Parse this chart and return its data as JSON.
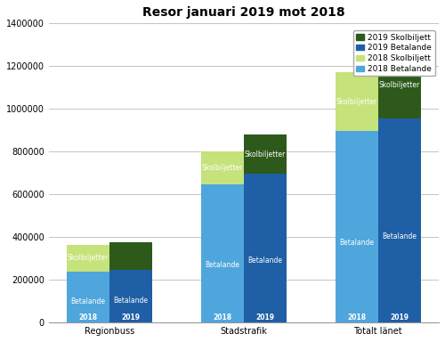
{
  "title": "Resor januari 2019 mot 2018",
  "groups": [
    "Regionbuss",
    "Stadstrafik",
    "Totalt länet"
  ],
  "years": [
    "2018",
    "2019"
  ],
  "betalande_2018": [
    240000,
    645000,
    895000
  ],
  "skolbiljett_2018": [
    125000,
    155000,
    275000
  ],
  "betalande_2019": [
    245000,
    695000,
    955000
  ],
  "skolbiljett_2019": [
    130000,
    185000,
    310000
  ],
  "color_betalande_2018": "#4ea6dc",
  "color_skolbiljett_2018": "#c6e27a",
  "color_betalande_2019": "#1f5fa6",
  "color_skolbiljett_2019": "#2d5a1b",
  "ylim": [
    0,
    1400000
  ],
  "yticks": [
    0,
    200000,
    400000,
    600000,
    800000,
    1000000,
    1200000,
    1400000
  ],
  "bar_width": 0.32,
  "label_betalande": "Betalande",
  "label_skolbiljett": "Skolbiljetter",
  "legend_labels": [
    "2019 Skolbiljett",
    "2019 Betalande",
    "2018 Skolbiljett",
    "2018 Betalande"
  ],
  "legend_colors": [
    "#2d5a1b",
    "#1f5fa6",
    "#c6e27a",
    "#4ea6dc"
  ],
  "background_color": "#ffffff",
  "grid_color": "#bbbbbb",
  "title_fontsize": 10,
  "tick_fontsize": 7,
  "bar_label_fontsize": 5.5,
  "year_label_fontsize": 5.5,
  "legend_fontsize": 6.5
}
